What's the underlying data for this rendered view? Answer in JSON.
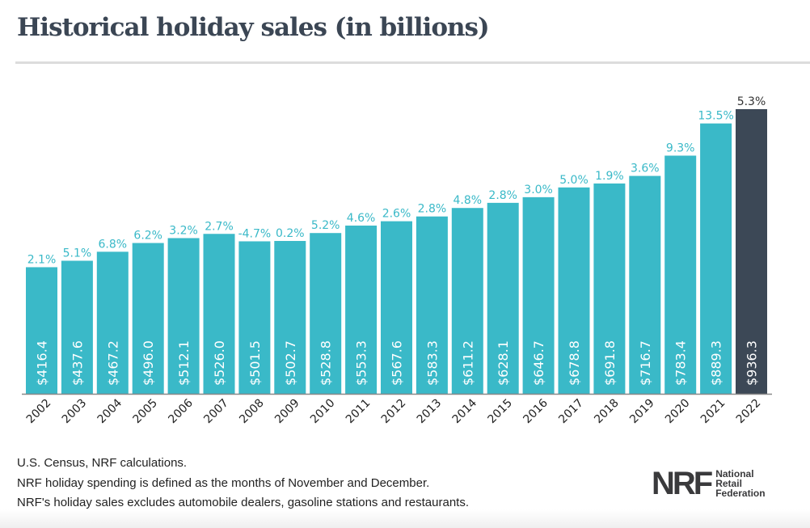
{
  "title": "Historical holiday sales (in billions)",
  "notes": [
    "U.S. Census, NRF calculations.",
    "NRF holiday spending is defined as the months of November and December.",
    "NRF's holiday sales excludes automobile dealers, gasoline stations and restaurants."
  ],
  "logo": {
    "mark": "NRF",
    "lines": [
      "National",
      "Retail",
      "Federation"
    ]
  },
  "chart_data": {
    "type": "bar",
    "title": "Historical holiday sales (in billions)",
    "categories": [
      "2002",
      "2003",
      "2004",
      "2005",
      "2006",
      "2007",
      "2008",
      "2009",
      "2010",
      "2011",
      "2012",
      "2013",
      "2014",
      "2015",
      "2016",
      "2017",
      "2018",
      "2019",
      "2020",
      "2021",
      "2022"
    ],
    "values": [
      416.4,
      437.6,
      467.2,
      496.0,
      512.1,
      526.0,
      501.5,
      502.7,
      528.8,
      553.3,
      567.6,
      583.3,
      611.2,
      628.1,
      646.7,
      678.8,
      691.8,
      716.7,
      783.4,
      889.3,
      936.3
    ],
    "value_labels": [
      "$416.4",
      "$437.6",
      "$467.2",
      "$496.0",
      "$512.1",
      "$526.0",
      "$501.5",
      "$502.7",
      "$528.8",
      "$553.3",
      "$567.6",
      "$583.3",
      "$611.2",
      "$628.1",
      "$646.7",
      "$678.8",
      "$691.8",
      "$716.7",
      "$783.4",
      "$889.3",
      "$936.3"
    ],
    "growth_labels": [
      "2.1%",
      "5.1%",
      "6.8%",
      "6.2%",
      "3.2%",
      "2.7%",
      "-4.7%",
      "0.2%",
      "5.2%",
      "4.6%",
      "2.6%",
      "2.8%",
      "4.8%",
      "2.8%",
      "3.0%",
      "5.0%",
      "1.9%",
      "3.6%",
      "9.3%",
      "13.5%",
      "5.3%"
    ],
    "ylim": [
      0,
      936.3
    ],
    "grid": false,
    "colors": {
      "default": "#3ab9c8",
      "highlight": "#3c4856",
      "highlight_category": "2022"
    }
  }
}
